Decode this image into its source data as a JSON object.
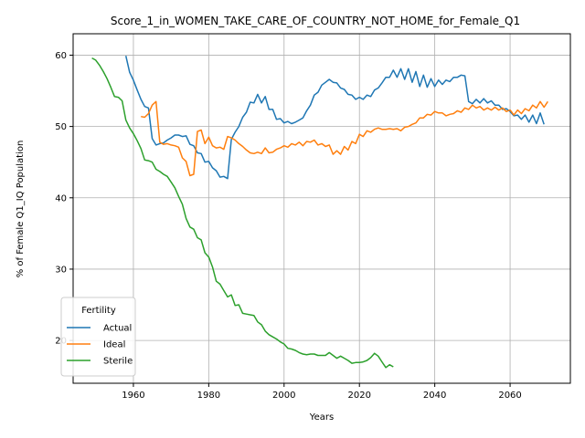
{
  "chart_data": {
    "type": "line",
    "title": "Score_1_in_WOMEN_TAKE_CARE_OF_COUNTRY_NOT_HOME_for_Female_Q1",
    "xlabel": "Years",
    "ylabel": "% of Female Q1_IQ Population",
    "xlim": [
      1944,
      2076
    ],
    "ylim": [
      14,
      63
    ],
    "xticks": [
      1960,
      1980,
      2000,
      2020,
      2040,
      2060
    ],
    "yticks": [
      20,
      30,
      40,
      50,
      60
    ],
    "grid": true,
    "legend": {
      "title": "Fertility",
      "placement": "bottom-left"
    },
    "series": [
      {
        "name": "Actual",
        "color": "#1f77b4",
        "points": [
          [
            1958,
            59.9
          ],
          [
            1959,
            57.6
          ],
          [
            1960,
            56.5
          ],
          [
            1961,
            55.1
          ],
          [
            1962,
            53.8
          ],
          [
            1963,
            52.8
          ],
          [
            1964,
            52.6
          ],
          [
            1965,
            48.3
          ],
          [
            1966,
            47.4
          ],
          [
            1967,
            47.6
          ],
          [
            1968,
            47.7
          ],
          [
            1969,
            48.1
          ],
          [
            1970,
            48.4
          ],
          [
            1971,
            48.8
          ],
          [
            1972,
            48.8
          ],
          [
            1973,
            48.6
          ],
          [
            1974,
            48.7
          ],
          [
            1975,
            47.5
          ],
          [
            1976,
            47.3
          ],
          [
            1977,
            46.3
          ],
          [
            1978,
            46.2
          ],
          [
            1979,
            45.0
          ],
          [
            1980,
            45.1
          ],
          [
            1981,
            44.2
          ],
          [
            1982,
            43.8
          ],
          [
            1983,
            42.9
          ],
          [
            1984,
            43.0
          ],
          [
            1985,
            42.7
          ],
          [
            1986,
            48.2
          ],
          [
            1987,
            49.2
          ],
          [
            1988,
            50.0
          ],
          [
            1989,
            51.3
          ],
          [
            1990,
            52.0
          ],
          [
            1991,
            53.4
          ],
          [
            1992,
            53.3
          ],
          [
            1993,
            54.5
          ],
          [
            1994,
            53.3
          ],
          [
            1995,
            54.2
          ],
          [
            1996,
            52.4
          ],
          [
            1997,
            52.4
          ],
          [
            1998,
            51.0
          ],
          [
            1999,
            51.1
          ],
          [
            2000,
            50.5
          ],
          [
            2001,
            50.7
          ],
          [
            2002,
            50.4
          ],
          [
            2003,
            50.6
          ],
          [
            2004,
            50.9
          ],
          [
            2005,
            51.2
          ],
          [
            2006,
            52.2
          ],
          [
            2007,
            53.0
          ],
          [
            2008,
            54.4
          ],
          [
            2009,
            54.8
          ],
          [
            2010,
            55.8
          ],
          [
            2011,
            56.2
          ],
          [
            2012,
            56.6
          ],
          [
            2013,
            56.2
          ],
          [
            2014,
            56.1
          ],
          [
            2015,
            55.4
          ],
          [
            2016,
            55.2
          ],
          [
            2017,
            54.5
          ],
          [
            2018,
            54.4
          ],
          [
            2019,
            53.8
          ],
          [
            2020,
            54.1
          ],
          [
            2021,
            53.8
          ],
          [
            2022,
            54.4
          ],
          [
            2023,
            54.2
          ],
          [
            2024,
            55.1
          ],
          [
            2025,
            55.4
          ],
          [
            2026,
            56.1
          ],
          [
            2027,
            56.9
          ],
          [
            2028,
            56.9
          ],
          [
            2029,
            57.9
          ],
          [
            2030,
            56.9
          ],
          [
            2031,
            58.1
          ],
          [
            2032,
            56.6
          ],
          [
            2033,
            58.1
          ],
          [
            2034,
            56.2
          ],
          [
            2035,
            57.7
          ],
          [
            2036,
            55.6
          ],
          [
            2037,
            57.2
          ],
          [
            2038,
            55.5
          ],
          [
            2039,
            56.7
          ],
          [
            2040,
            55.6
          ],
          [
            2041,
            56.5
          ],
          [
            2042,
            55.9
          ],
          [
            2043,
            56.5
          ],
          [
            2044,
            56.3
          ],
          [
            2045,
            56.9
          ],
          [
            2046,
            56.9
          ],
          [
            2047,
            57.2
          ],
          [
            2048,
            57.1
          ],
          [
            2049,
            53.5
          ],
          [
            2050,
            53.2
          ],
          [
            2051,
            53.8
          ],
          [
            2052,
            53.3
          ],
          [
            2053,
            53.9
          ],
          [
            2054,
            53.3
          ],
          [
            2055,
            53.6
          ],
          [
            2056,
            53.0
          ],
          [
            2057,
            53.0
          ],
          [
            2058,
            52.4
          ],
          [
            2059,
            52.5
          ],
          [
            2060,
            52.1
          ],
          [
            2061,
            51.5
          ],
          [
            2062,
            51.6
          ],
          [
            2063,
            51.0
          ],
          [
            2064,
            51.6
          ],
          [
            2065,
            50.6
          ],
          [
            2066,
            51.6
          ],
          [
            2067,
            50.4
          ],
          [
            2068,
            51.9
          ],
          [
            2069,
            50.3
          ]
        ]
      },
      {
        "name": "Ideal",
        "color": "#ff7f0e",
        "points": [
          [
            1962,
            51.4
          ],
          [
            1963,
            51.3
          ],
          [
            1964,
            51.8
          ],
          [
            1965,
            53.0
          ],
          [
            1966,
            53.5
          ],
          [
            1967,
            47.8
          ],
          [
            1968,
            47.5
          ],
          [
            1969,
            47.6
          ],
          [
            1970,
            47.4
          ],
          [
            1971,
            47.3
          ],
          [
            1972,
            47.1
          ],
          [
            1973,
            45.6
          ],
          [
            1974,
            45.1
          ],
          [
            1975,
            43.1
          ],
          [
            1976,
            43.3
          ],
          [
            1977,
            49.3
          ],
          [
            1978,
            49.5
          ],
          [
            1979,
            47.6
          ],
          [
            1980,
            48.5
          ],
          [
            1981,
            47.3
          ],
          [
            1982,
            47.0
          ],
          [
            1983,
            47.1
          ],
          [
            1984,
            46.8
          ],
          [
            1985,
            48.6
          ],
          [
            1986,
            48.4
          ],
          [
            1987,
            48.1
          ],
          [
            1988,
            47.6
          ],
          [
            1989,
            47.2
          ],
          [
            1990,
            46.7
          ],
          [
            1991,
            46.3
          ],
          [
            1992,
            46.2
          ],
          [
            1993,
            46.4
          ],
          [
            1994,
            46.2
          ],
          [
            1995,
            47.0
          ],
          [
            1996,
            46.3
          ],
          [
            1997,
            46.4
          ],
          [
            1998,
            46.8
          ],
          [
            1999,
            47.0
          ],
          [
            2000,
            47.3
          ],
          [
            2001,
            47.1
          ],
          [
            2002,
            47.6
          ],
          [
            2003,
            47.4
          ],
          [
            2004,
            47.8
          ],
          [
            2005,
            47.3
          ],
          [
            2006,
            47.9
          ],
          [
            2007,
            47.8
          ],
          [
            2008,
            48.1
          ],
          [
            2009,
            47.4
          ],
          [
            2010,
            47.6
          ],
          [
            2011,
            47.2
          ],
          [
            2012,
            47.4
          ],
          [
            2013,
            46.1
          ],
          [
            2014,
            46.6
          ],
          [
            2015,
            46.1
          ],
          [
            2016,
            47.2
          ],
          [
            2017,
            46.7
          ],
          [
            2018,
            47.9
          ],
          [
            2019,
            47.6
          ],
          [
            2020,
            48.9
          ],
          [
            2021,
            48.6
          ],
          [
            2022,
            49.4
          ],
          [
            2023,
            49.2
          ],
          [
            2024,
            49.6
          ],
          [
            2025,
            49.8
          ],
          [
            2026,
            49.6
          ],
          [
            2027,
            49.6
          ],
          [
            2028,
            49.7
          ],
          [
            2029,
            49.6
          ],
          [
            2030,
            49.7
          ],
          [
            2031,
            49.4
          ],
          [
            2032,
            49.9
          ],
          [
            2033,
            50.0
          ],
          [
            2034,
            50.3
          ],
          [
            2035,
            50.5
          ],
          [
            2036,
            51.2
          ],
          [
            2037,
            51.2
          ],
          [
            2038,
            51.7
          ],
          [
            2039,
            51.6
          ],
          [
            2040,
            52.1
          ],
          [
            2041,
            51.9
          ],
          [
            2042,
            51.9
          ],
          [
            2043,
            51.5
          ],
          [
            2044,
            51.7
          ],
          [
            2045,
            51.8
          ],
          [
            2046,
            52.2
          ],
          [
            2047,
            52.0
          ],
          [
            2048,
            52.6
          ],
          [
            2049,
            52.4
          ],
          [
            2050,
            53.0
          ],
          [
            2051,
            52.6
          ],
          [
            2052,
            52.8
          ],
          [
            2053,
            52.3
          ],
          [
            2054,
            52.6
          ],
          [
            2055,
            52.3
          ],
          [
            2056,
            52.7
          ],
          [
            2057,
            52.3
          ],
          [
            2058,
            52.6
          ],
          [
            2059,
            52.1
          ],
          [
            2060,
            52.3
          ],
          [
            2061,
            51.6
          ],
          [
            2062,
            52.3
          ],
          [
            2063,
            51.8
          ],
          [
            2064,
            52.5
          ],
          [
            2065,
            52.2
          ],
          [
            2066,
            53.0
          ],
          [
            2067,
            52.6
          ],
          [
            2068,
            53.5
          ],
          [
            2069,
            52.7
          ],
          [
            2070,
            53.5
          ]
        ]
      },
      {
        "name": "Sterile",
        "color": "#2ca02c",
        "points": [
          [
            1949,
            59.6
          ],
          [
            1950,
            59.3
          ],
          [
            1951,
            58.6
          ],
          [
            1952,
            57.7
          ],
          [
            1953,
            56.7
          ],
          [
            1954,
            55.5
          ],
          [
            1955,
            54.2
          ],
          [
            1956,
            54.1
          ],
          [
            1957,
            53.6
          ],
          [
            1958,
            50.9
          ],
          [
            1959,
            49.8
          ],
          [
            1960,
            49.0
          ],
          [
            1961,
            48.0
          ],
          [
            1962,
            46.9
          ],
          [
            1963,
            45.3
          ],
          [
            1964,
            45.2
          ],
          [
            1965,
            45.0
          ],
          [
            1966,
            44.0
          ],
          [
            1967,
            43.7
          ],
          [
            1968,
            43.3
          ],
          [
            1969,
            43.0
          ],
          [
            1970,
            42.2
          ],
          [
            1971,
            41.4
          ],
          [
            1972,
            40.2
          ],
          [
            1973,
            39.1
          ],
          [
            1974,
            37.1
          ],
          [
            1975,
            35.9
          ],
          [
            1976,
            35.6
          ],
          [
            1977,
            34.4
          ],
          [
            1978,
            34.1
          ],
          [
            1979,
            32.3
          ],
          [
            1980,
            31.7
          ],
          [
            1981,
            30.3
          ],
          [
            1982,
            28.3
          ],
          [
            1983,
            27.9
          ],
          [
            1984,
            27.0
          ],
          [
            1985,
            26.1
          ],
          [
            1986,
            26.4
          ],
          [
            1987,
            24.9
          ],
          [
            1988,
            25.0
          ],
          [
            1989,
            23.8
          ],
          [
            1990,
            23.7
          ],
          [
            1991,
            23.6
          ],
          [
            1992,
            23.5
          ],
          [
            1993,
            22.6
          ],
          [
            1994,
            22.2
          ],
          [
            1995,
            21.3
          ],
          [
            1996,
            20.8
          ],
          [
            1997,
            20.5
          ],
          [
            1998,
            20.2
          ],
          [
            1999,
            19.8
          ],
          [
            2000,
            19.5
          ],
          [
            2001,
            18.9
          ],
          [
            2002,
            18.8
          ],
          [
            2003,
            18.6
          ],
          [
            2004,
            18.3
          ],
          [
            2005,
            18.1
          ],
          [
            2006,
            18.0
          ],
          [
            2007,
            18.1
          ],
          [
            2008,
            18.1
          ],
          [
            2009,
            17.9
          ],
          [
            2010,
            17.9
          ],
          [
            2011,
            17.9
          ],
          [
            2012,
            18.3
          ],
          [
            2013,
            17.9
          ],
          [
            2014,
            17.5
          ],
          [
            2015,
            17.8
          ],
          [
            2016,
            17.5
          ],
          [
            2017,
            17.2
          ],
          [
            2018,
            16.8
          ],
          [
            2019,
            16.9
          ],
          [
            2020,
            16.9
          ],
          [
            2021,
            17.0
          ],
          [
            2022,
            17.2
          ],
          [
            2023,
            17.6
          ],
          [
            2024,
            18.2
          ],
          [
            2025,
            17.8
          ],
          [
            2026,
            17.0
          ],
          [
            2027,
            16.2
          ],
          [
            2028,
            16.6
          ],
          [
            2029,
            16.3
          ]
        ]
      }
    ]
  }
}
